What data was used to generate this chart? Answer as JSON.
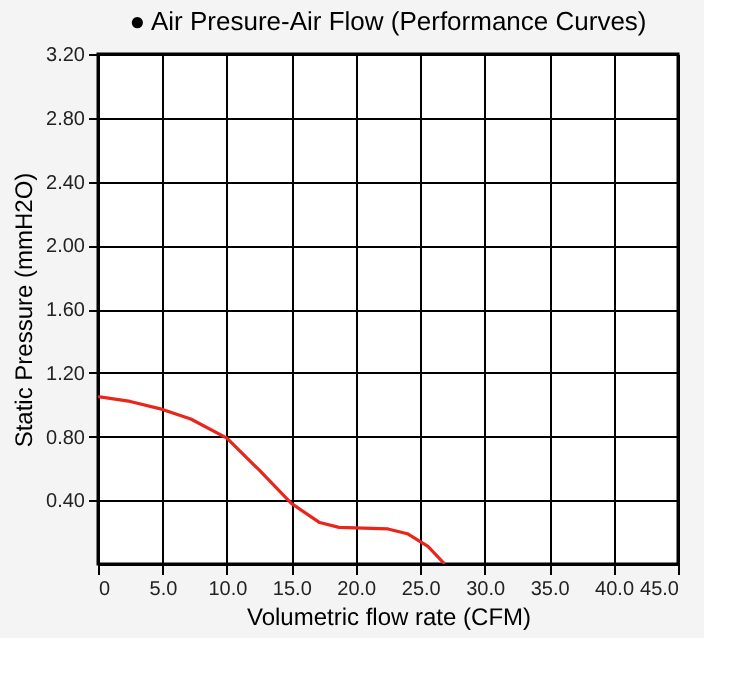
{
  "chart_data": {
    "type": "line",
    "title": "● Air Presure-Air Flow (Performance Curves)",
    "xlabel": "Volumetric flow rate (CFM)",
    "ylabel": "Static Pressure (mmH2O)",
    "xlim": [
      0,
      45
    ],
    "ylim": [
      0,
      3.2
    ],
    "xticks": [
      0,
      {
        "value": 5,
        "label": "5.0"
      },
      {
        "value": 10,
        "label": "10.0"
      },
      {
        "value": 15,
        "label": "15.0"
      },
      {
        "value": 20,
        "label": "20.0"
      },
      {
        "value": 25,
        "label": "25.0"
      },
      {
        "value": 30,
        "label": "30.0"
      },
      {
        "value": 35,
        "label": "35.0"
      },
      {
        "value": 40,
        "label": "40.0"
      },
      {
        "value": 45,
        "label": "45.0"
      }
    ],
    "yticks": [
      {
        "value": 0.4,
        "label": "0.40"
      },
      {
        "value": 0.8,
        "label": "0.80"
      },
      {
        "value": 1.2,
        "label": "1.20"
      },
      {
        "value": 1.6,
        "label": "1.60"
      },
      {
        "value": 2.0,
        "label": "2.00"
      },
      {
        "value": 2.4,
        "label": "2.40"
      },
      {
        "value": 2.8,
        "label": "2.80"
      },
      {
        "value": 3.2,
        "label": "3.20"
      }
    ],
    "grid": true,
    "marker": "none",
    "line_style": "solid",
    "series": [
      {
        "color": "#e8261c",
        "x": [
          0,
          2.5,
          5,
          7.2,
          10,
          12.5,
          15,
          17.2,
          18.7,
          22.5,
          24,
          25.6,
          26.9
        ],
        "values": [
          1.05,
          1.02,
          0.97,
          0.91,
          0.79,
          0.59,
          0.38,
          0.26,
          0.23,
          0.22,
          0.19,
          0.11,
          0.0
        ]
      }
    ]
  }
}
